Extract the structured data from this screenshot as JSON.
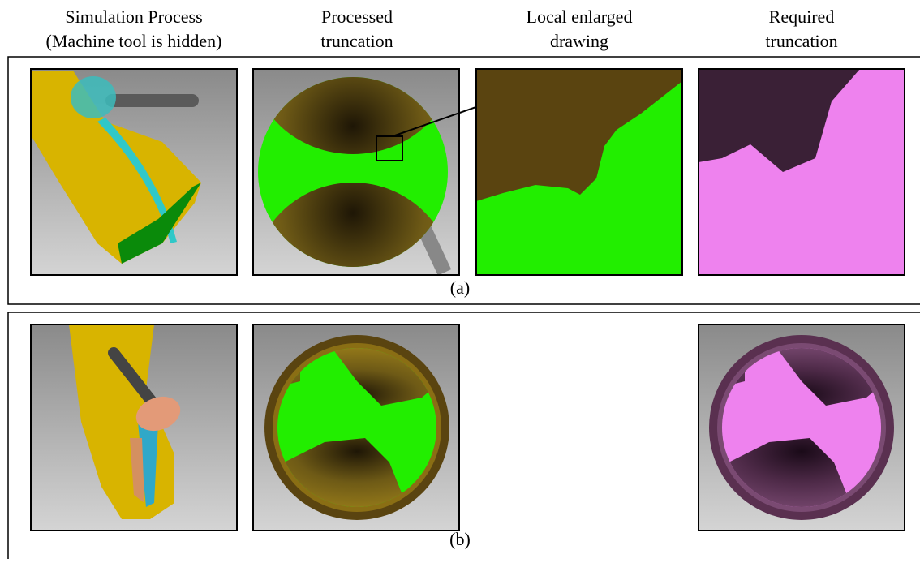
{
  "headers": [
    {
      "lines": [
        "Simulation Process",
        "(Machine tool is hidden)"
      ]
    },
    {
      "lines": [
        "Processed",
        "truncation"
      ]
    },
    {
      "lines": [
        "Local enlarged",
        "drawing"
      ]
    },
    {
      "lines": [
        "Required",
        "truncation"
      ]
    }
  ],
  "panels": [
    {
      "label": "(a)"
    },
    {
      "label": "(b)"
    }
  ]
}
